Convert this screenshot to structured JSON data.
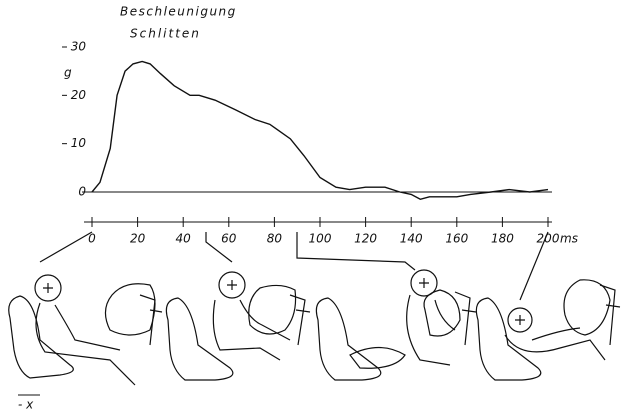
{
  "chart_data": {
    "type": "line",
    "ylabel": [
      "Beschleunigung",
      "Schlitten"
    ],
    "y_unit": "g",
    "x_unit": "ms",
    "annotation": "- x",
    "series": [
      {
        "color": "#111111",
        "x": [
          0,
          3.5,
          8,
          11,
          14.5,
          18,
          22,
          25.5,
          30,
          36,
          43,
          47,
          54,
          63,
          71.5,
          78,
          87,
          93,
          100,
          107,
          113,
          120,
          128.5,
          135,
          140,
          144,
          148,
          153,
          160,
          166,
          175,
          183,
          192,
          200
        ],
        "values": [
          0,
          2,
          9,
          20,
          25,
          26.5,
          27,
          26.5,
          24.5,
          22,
          20,
          20,
          19,
          17,
          15,
          14,
          11,
          7.5,
          3,
          1,
          0.5,
          1,
          1,
          0,
          -0.5,
          -1.5,
          -1,
          -1,
          -1,
          -0.5,
          0,
          0.5,
          0,
          0.5
        ]
      }
    ],
    "xlim": [
      0,
      200
    ],
    "xticks": [
      0,
      20,
      40,
      60,
      80,
      100,
      120,
      140,
      160,
      180,
      200
    ],
    "ylim": [
      0,
      30
    ],
    "yticks": [
      0,
      10,
      20,
      30
    ]
  }
}
